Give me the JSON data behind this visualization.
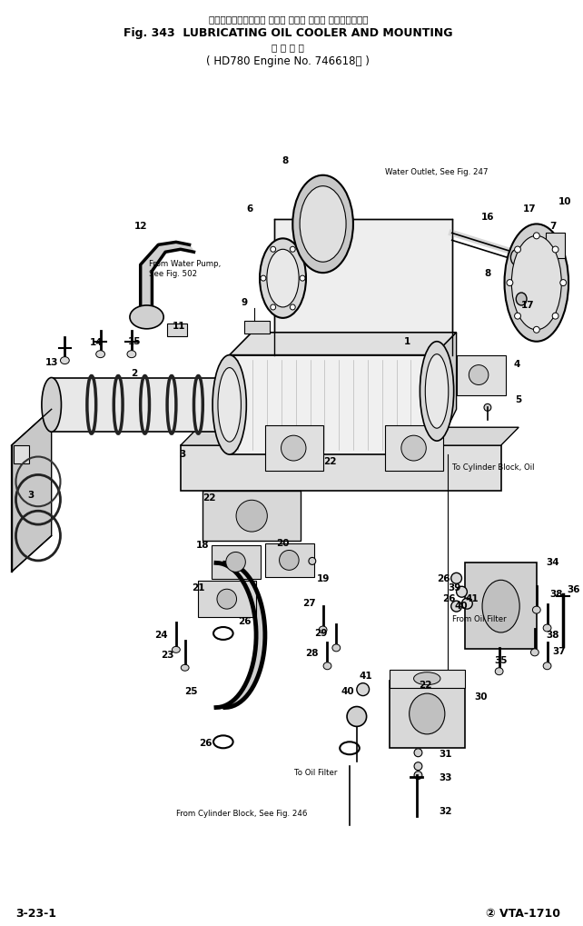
{
  "title_jp": "ルーブリケーティング オイル クーラ および マウンティング",
  "title_en": "Fig. 343  LUBRICATING OIL COOLER AND MOUNTING",
  "subtitle_jp": "適 用 号 機",
  "subtitle_en": "HD780 Engine No. 746618～",
  "footer_left": "3-23-1",
  "footer_right": "② VTA-1710",
  "bg_color": "#ffffff",
  "text_color": "#000000"
}
